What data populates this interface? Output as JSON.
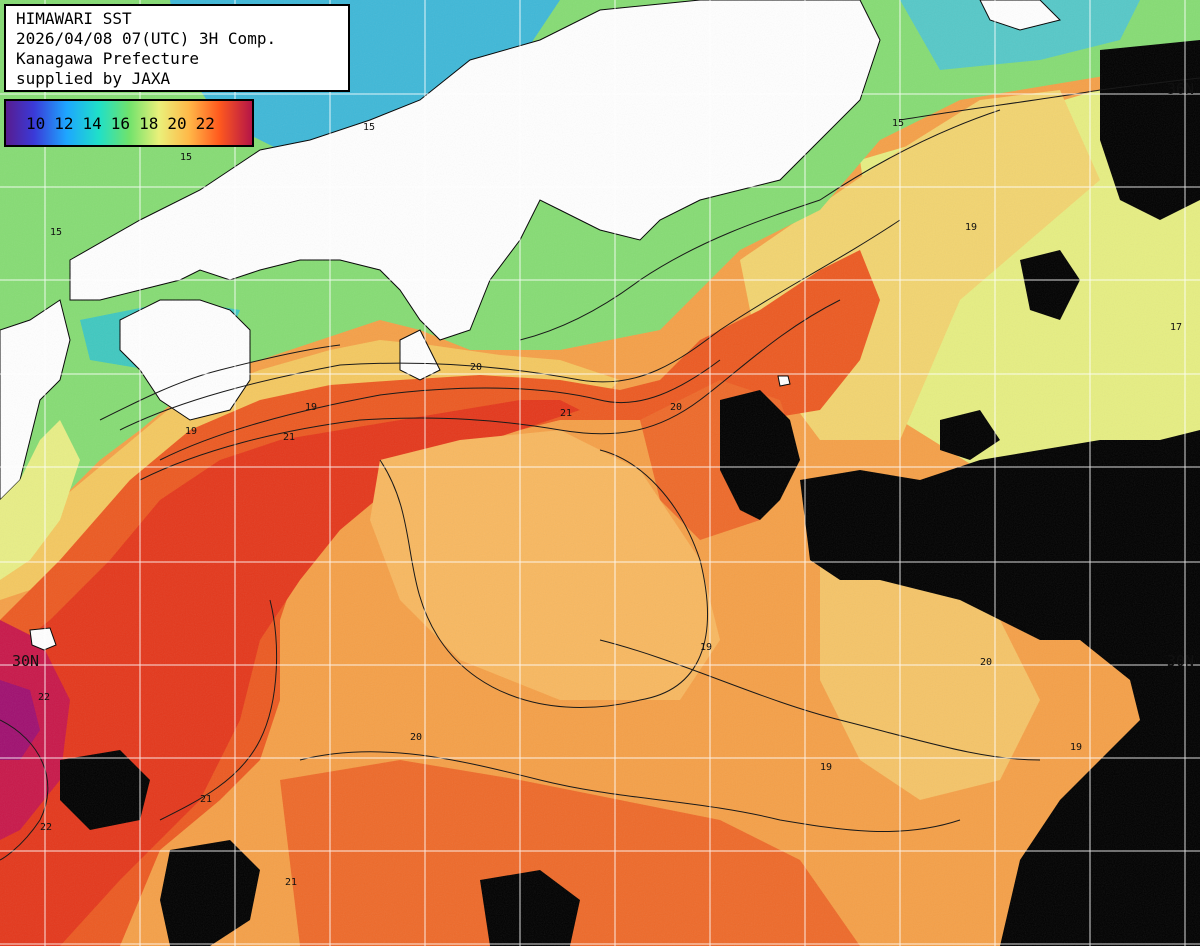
{
  "info": {
    "line1": "HIMAWARI SST",
    "line2": "2026/04/08 07(UTC) 3H Comp.",
    "line3": "Kanagawa Prefecture",
    "line4": "supplied by JAXA"
  },
  "legend": {
    "labels": [
      "10",
      "12",
      "14",
      "16",
      "18",
      "20",
      "22"
    ],
    "unit": "",
    "colors": [
      "#6a1b9a",
      "#2b3fd1",
      "#1ea7ff",
      "#22e3c0",
      "#6be06a",
      "#e8f07a",
      "#ffb04a",
      "#ff5a1e",
      "#e0182a",
      "#b0104a"
    ]
  },
  "grid": {
    "lat_labels": [
      {
        "text": "36N",
        "side": "right"
      },
      {
        "text": "30N",
        "side": "left"
      },
      {
        "text": "30N",
        "side": "right"
      }
    ]
  },
  "colors": {
    "land": "#ffffff",
    "cloud_mask": "#000000",
    "warm_current": "#e8461e",
    "warm_sea": "#f58a3a",
    "mild_sea": "#f7b256",
    "cool_sea": "#eaf07a",
    "coastal": "#7ddc7a",
    "cold_coastal": "#2fb8c8"
  },
  "contour_labels": [
    "15",
    "17",
    "19",
    "20",
    "21",
    "22"
  ]
}
